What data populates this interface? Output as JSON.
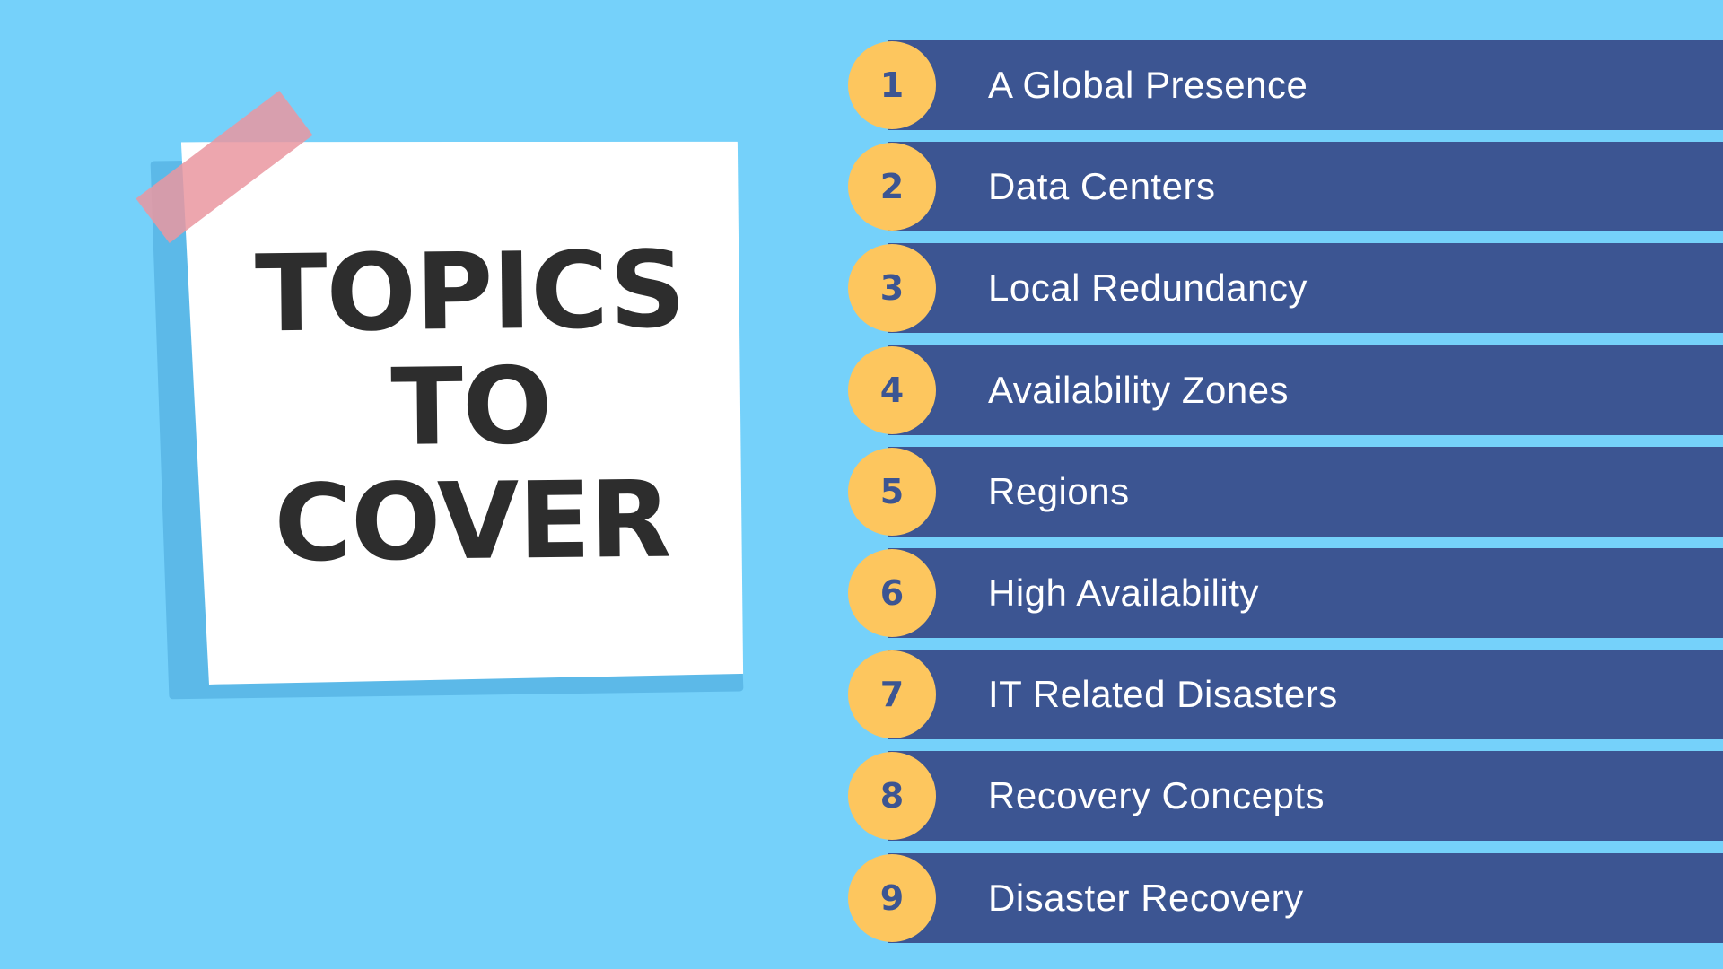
{
  "slide": {
    "background_color": "#75d1fa",
    "note": {
      "title_lines": [
        "TOPICS",
        "TO",
        "COVER"
      ],
      "note_color": "#ffffff",
      "tape_color": "#ea96a0",
      "text_color": "#2d2d2d"
    },
    "topics": [
      {
        "number": "1",
        "label": "A Global Presence"
      },
      {
        "number": "2",
        "label": "Data Centers"
      },
      {
        "number": "3",
        "label": "Local Redundancy"
      },
      {
        "number": "4",
        "label": "Availability Zones"
      },
      {
        "number": "5",
        "label": "Regions"
      },
      {
        "number": "6",
        "label": "High Availability"
      },
      {
        "number": "7",
        "label": "IT Related Disasters"
      },
      {
        "number": "8",
        "label": "Recovery Concepts"
      },
      {
        "number": "9",
        "label": "Disaster Recovery"
      }
    ],
    "colors": {
      "bar": "#3c5592",
      "badge": "#fdc65e",
      "label_text": "#ffffff"
    }
  }
}
